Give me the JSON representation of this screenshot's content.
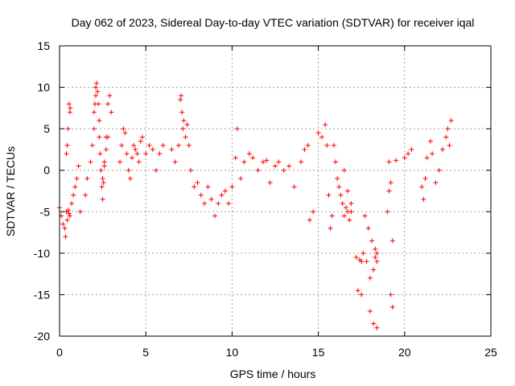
{
  "chart_data": {
    "type": "scatter",
    "title": "Day 062 of 2023, Sidereal Day-to-day VTEC variation (SDTVAR) for receiver iqal",
    "xlabel": "GPS time / hours",
    "ylabel": "SDTVAR / TECUs",
    "xlim": [
      0,
      25
    ],
    "ylim": [
      -20,
      15
    ],
    "xticks": [
      0,
      5,
      10,
      15,
      20,
      25
    ],
    "yticks": [
      -20,
      -15,
      -10,
      -5,
      0,
      5,
      10,
      15
    ],
    "grid": true,
    "marker": "+",
    "color": "#ff0000",
    "series": [
      {
        "name": "iqal",
        "x": [
          0.0,
          0.1,
          0.2,
          0.3,
          0.35,
          0.4,
          0.45,
          0.5,
          0.55,
          0.6,
          0.7,
          0.8,
          0.9,
          1.0,
          1.1,
          1.2,
          0.4,
          0.45,
          0.5,
          0.55,
          0.6,
          0.62,
          1.5,
          1.6,
          1.8,
          1.9,
          2.0,
          2.0,
          2.05,
          2.1,
          2.1,
          2.15,
          2.2,
          2.25,
          2.3,
          2.3,
          2.35,
          2.4,
          2.45,
          2.5,
          2.55,
          2.6,
          2.7,
          2.8,
          2.9,
          3.0,
          2.5,
          2.6,
          2.7,
          2.8,
          3.5,
          3.6,
          3.7,
          3.8,
          3.9,
          4.0,
          4.1,
          4.2,
          4.3,
          4.4,
          4.5,
          4.6,
          4.7,
          4.8,
          5.0,
          5.2,
          5.4,
          5.6,
          5.8,
          6.0,
          6.5,
          6.7,
          6.9,
          7.0,
          7.05,
          7.1,
          7.15,
          7.2,
          7.3,
          7.4,
          7.5,
          7.6,
          7.8,
          8.0,
          8.2,
          8.4,
          8.6,
          8.8,
          9.0,
          9.2,
          9.4,
          9.6,
          9.8,
          10.0,
          10.2,
          10.3,
          10.5,
          10.7,
          11.0,
          11.2,
          11.5,
          11.8,
          12.0,
          12.2,
          12.5,
          12.7,
          13.0,
          13.3,
          13.6,
          14.0,
          14.2,
          14.4,
          14.5,
          14.7,
          15.0,
          15.2,
          15.4,
          15.5,
          15.6,
          15.7,
          15.8,
          15.9,
          16.0,
          16.1,
          16.2,
          16.3,
          16.4,
          16.5,
          16.6,
          16.7,
          16.8,
          16.9,
          16.5,
          16.7,
          16.9,
          17.2,
          17.4,
          17.5,
          17.6,
          17.8,
          18.0,
          18.2,
          18.3,
          18.4,
          17.7,
          17.9,
          18.1,
          18.3,
          18.4,
          17.3,
          17.5,
          18.0,
          18.2,
          18.4,
          19.0,
          19.1,
          19.2,
          19.3,
          19.5,
          19.2,
          19.3,
          19.1,
          20.0,
          20.2,
          20.4,
          21.0,
          21.1,
          21.2,
          21.3,
          21.5,
          21.6,
          21.8,
          22.0,
          22.2,
          22.4,
          22.5,
          22.6,
          22.7
        ],
        "y": [
          -4.5,
          -5.5,
          -6.5,
          -7.0,
          -8.0,
          -5.0,
          -6.0,
          -4.8,
          -5.2,
          -5.5,
          -4.0,
          -3.0,
          -2.0,
          -1.0,
          0.5,
          -5.0,
          2.0,
          3.0,
          5.0,
          8.0,
          7.0,
          7.5,
          -3.0,
          -1.0,
          1.0,
          3.0,
          5.0,
          7.0,
          8.0,
          9.0,
          10.0,
          10.5,
          9.5,
          8.0,
          6.0,
          4.0,
          2.0,
          0.0,
          -2.0,
          -3.5,
          -1.5,
          0.5,
          4.0,
          8.0,
          9.0,
          7.0,
          -1.0,
          1.0,
          2.5,
          4.0,
          1.0,
          3.0,
          5.0,
          4.5,
          2.0,
          0.0,
          -1.0,
          1.5,
          3.0,
          2.5,
          2.0,
          1.0,
          3.5,
          4.0,
          2.0,
          3.0,
          2.5,
          0.0,
          2.0,
          3.0,
          2.5,
          1.0,
          3.0,
          8.5,
          9.0,
          7.0,
          5.0,
          6.0,
          4.0,
          5.5,
          3.0,
          0.0,
          -2.0,
          -1.5,
          -3.0,
          -4.0,
          -2.0,
          -3.5,
          -5.5,
          -4.0,
          -3.0,
          -2.5,
          -4.0,
          -2.0,
          1.5,
          5.0,
          -1.0,
          1.0,
          2.0,
          1.5,
          0.0,
          1.0,
          1.2,
          -1.5,
          0.5,
          1.0,
          0.0,
          0.5,
          -2.0,
          1.0,
          2.5,
          3.0,
          -6.0,
          -5.0,
          4.5,
          4.0,
          5.5,
          3.0,
          -3.0,
          -7.0,
          -5.5,
          3.0,
          1.0,
          -1.0,
          -2.0,
          -3.0,
          -4.0,
          -5.5,
          -4.5,
          -5.0,
          -6.0,
          -5.0,
          0.0,
          -2.5,
          -4.0,
          -10.5,
          -10.8,
          -11.0,
          -10.0,
          -11.0,
          -13.0,
          -12.0,
          -10.5,
          -11.0,
          -5.5,
          -7.0,
          -8.5,
          -9.5,
          -10.0,
          -14.5,
          -15.0,
          -17.0,
          -18.5,
          -19.0,
          -5.0,
          -2.5,
          -1.5,
          -8.5,
          1.2,
          -15.0,
          -16.5,
          1.0,
          1.5,
          2.0,
          2.5,
          -2.0,
          -3.5,
          -1.0,
          1.5,
          3.5,
          2.0,
          -1.5,
          0.0,
          2.5,
          4.0,
          5.0,
          3.0,
          6.0
        ]
      }
    ]
  }
}
